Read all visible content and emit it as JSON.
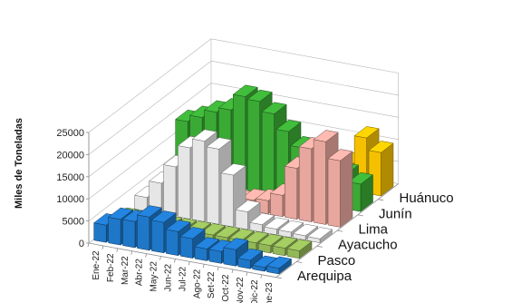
{
  "chart_data": {
    "type": "bar",
    "subtype": "3d-column",
    "ylabel": "Miles de Toneladas",
    "ylim": [
      0,
      25000
    ],
    "yticks": [
      0,
      5000,
      10000,
      15000,
      20000,
      25000
    ],
    "categories": [
      "Ene-22",
      "Feb-22",
      "Mar-22",
      "Abr-22",
      "May-22",
      "Jun-22",
      "Jul-22",
      "Ago-22",
      "Set-22",
      "Oct-22",
      "Nov-22",
      "Dic-22",
      "Ene-23"
    ],
    "x_tick_labels": [
      "Ene-22",
      "Feb-22",
      "Mar-22",
      "Abr-22",
      "May-22",
      "Jun-22",
      "Jul-22",
      "Ago-22",
      "Set-22",
      "Oct-22",
      "Nov-22",
      "Dic-22",
      "Ene-23"
    ],
    "grid": true,
    "legend": "series labels on depth axis (right side)",
    "series": [
      {
        "name": "Arequipa",
        "color": "#1f77c8",
        "values": [
          3900,
          5800,
          5900,
          7500,
          6900,
          5400,
          4400,
          2700,
          2700,
          3700,
          1900,
          900,
          1300
        ]
      },
      {
        "name": "Pasco",
        "color": "#93b858",
        "values": [
          1700,
          1700,
          1700,
          1700,
          1700,
          1700,
          1700,
          1700,
          1700,
          1700,
          1700,
          1700,
          1700
        ]
      },
      {
        "name": "Ayacucho",
        "color": "#e6e6e6",
        "values": [
          3100,
          6900,
          11200,
          16100,
          18200,
          17000,
          11700,
          4000,
          1700,
          1300,
          1200,
          1000,
          900
        ]
      },
      {
        "name": "Lima",
        "color": "#e8a79e",
        "values": [
          700,
          900,
          1000,
          1200,
          1400,
          1800,
          2500,
          3000,
          4800,
          11500,
          16500,
          18700,
          15000
        ]
      },
      {
        "name": "Junín",
        "color": "#3aaa35",
        "values": [
          13200,
          14700,
          16500,
          17600,
          21200,
          20700,
          18500,
          15100,
          12000,
          10500,
          10000,
          7800,
          6200
        ]
      },
      {
        "name": "Huánuco",
        "color": "#f5c000",
        "values": [
          0,
          0,
          2500,
          4300,
          2900,
          0,
          0,
          0,
          0,
          0,
          6000,
          12500,
          9800
        ]
      }
    ]
  }
}
